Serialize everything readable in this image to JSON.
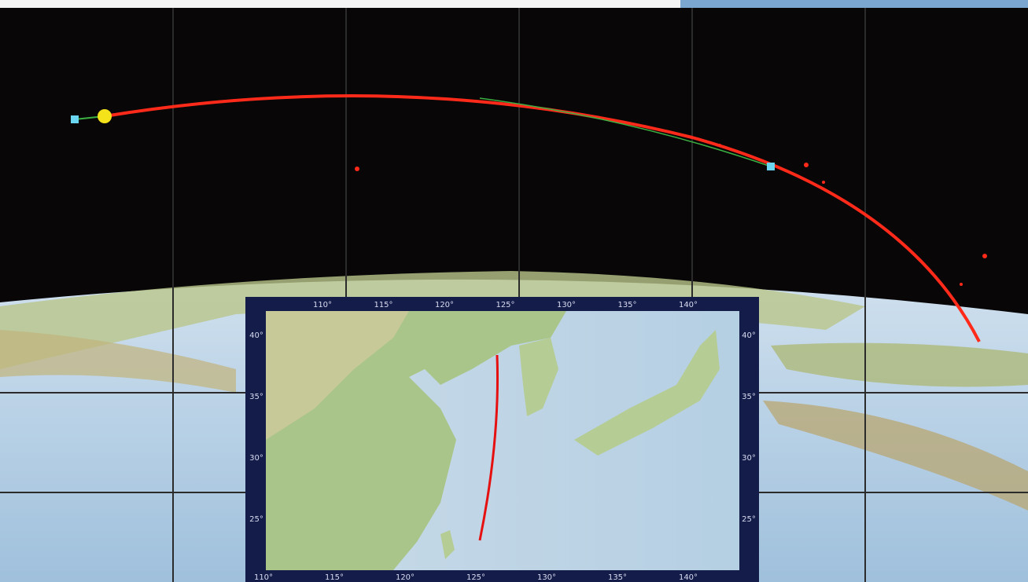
{
  "map": {
    "top_labels": [
      "110°",
      "115°",
      "120°",
      "125°",
      "130°",
      "135°",
      "140°"
    ],
    "left_labels": [
      "40°",
      "35°",
      "30°",
      "25°"
    ],
    "right_labels": [
      "40°",
      "35°",
      "30°",
      "25°"
    ],
    "bottom_labels": [
      "110°",
      "115°",
      "120°",
      "125°",
      "130°",
      "135°",
      "140°"
    ]
  }
}
